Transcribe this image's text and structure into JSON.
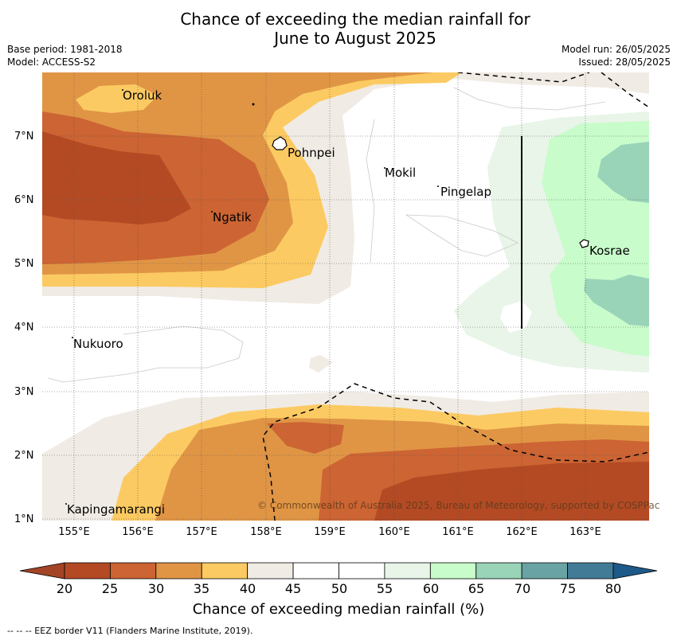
{
  "title_line1": "Chance of exceeding the median rainfall for",
  "title_line2": "June to August 2025",
  "left_meta": [
    "Base period: 1981-2018",
    "Model: ACCESS-S2"
  ],
  "right_meta": [
    "Model run: 26/05/2025",
    "Issued: 28/05/2025"
  ],
  "lat_labels": [
    "7°N",
    "6°N",
    "5°N",
    "4°N",
    "3°N",
    "2°N",
    "1°N"
  ],
  "lon_labels": [
    "155°E",
    "156°E",
    "157°E",
    "158°E",
    "159°E",
    "160°E",
    "161°E",
    "162°E",
    "163°E"
  ],
  "places": [
    "Oroluk",
    "Pohnpei",
    "Mokil",
    "Pingelap",
    "Ngatik",
    "Kosrae",
    "Nukuoro",
    "Kapingamarangi"
  ],
  "copyright": "© Commonwealth of Australia 2025, Bureau of Meteorology, supported by COSPPac",
  "colorbar": {
    "ticks": [
      "20",
      "25",
      "30",
      "35",
      "40",
      "45",
      "50",
      "55",
      "60",
      "65",
      "70",
      "75",
      "80"
    ],
    "colors": [
      "#b34a24",
      "#cc6433",
      "#e09545",
      "#fcca62",
      "#f0ebe4",
      "#ffffff",
      "#ffffff",
      "#e8f5e8",
      "#c8fcca",
      "#99d3b8",
      "#6aa3a3",
      "#417b96"
    ],
    "under_color": "#a34426",
    "over_color": "#1d5a8a",
    "label": "Chance of exceeding median rainfall (%)"
  },
  "eez_note": "--  --  -- EEZ border V11 (Flanders Marine Institute, 2019)."
}
